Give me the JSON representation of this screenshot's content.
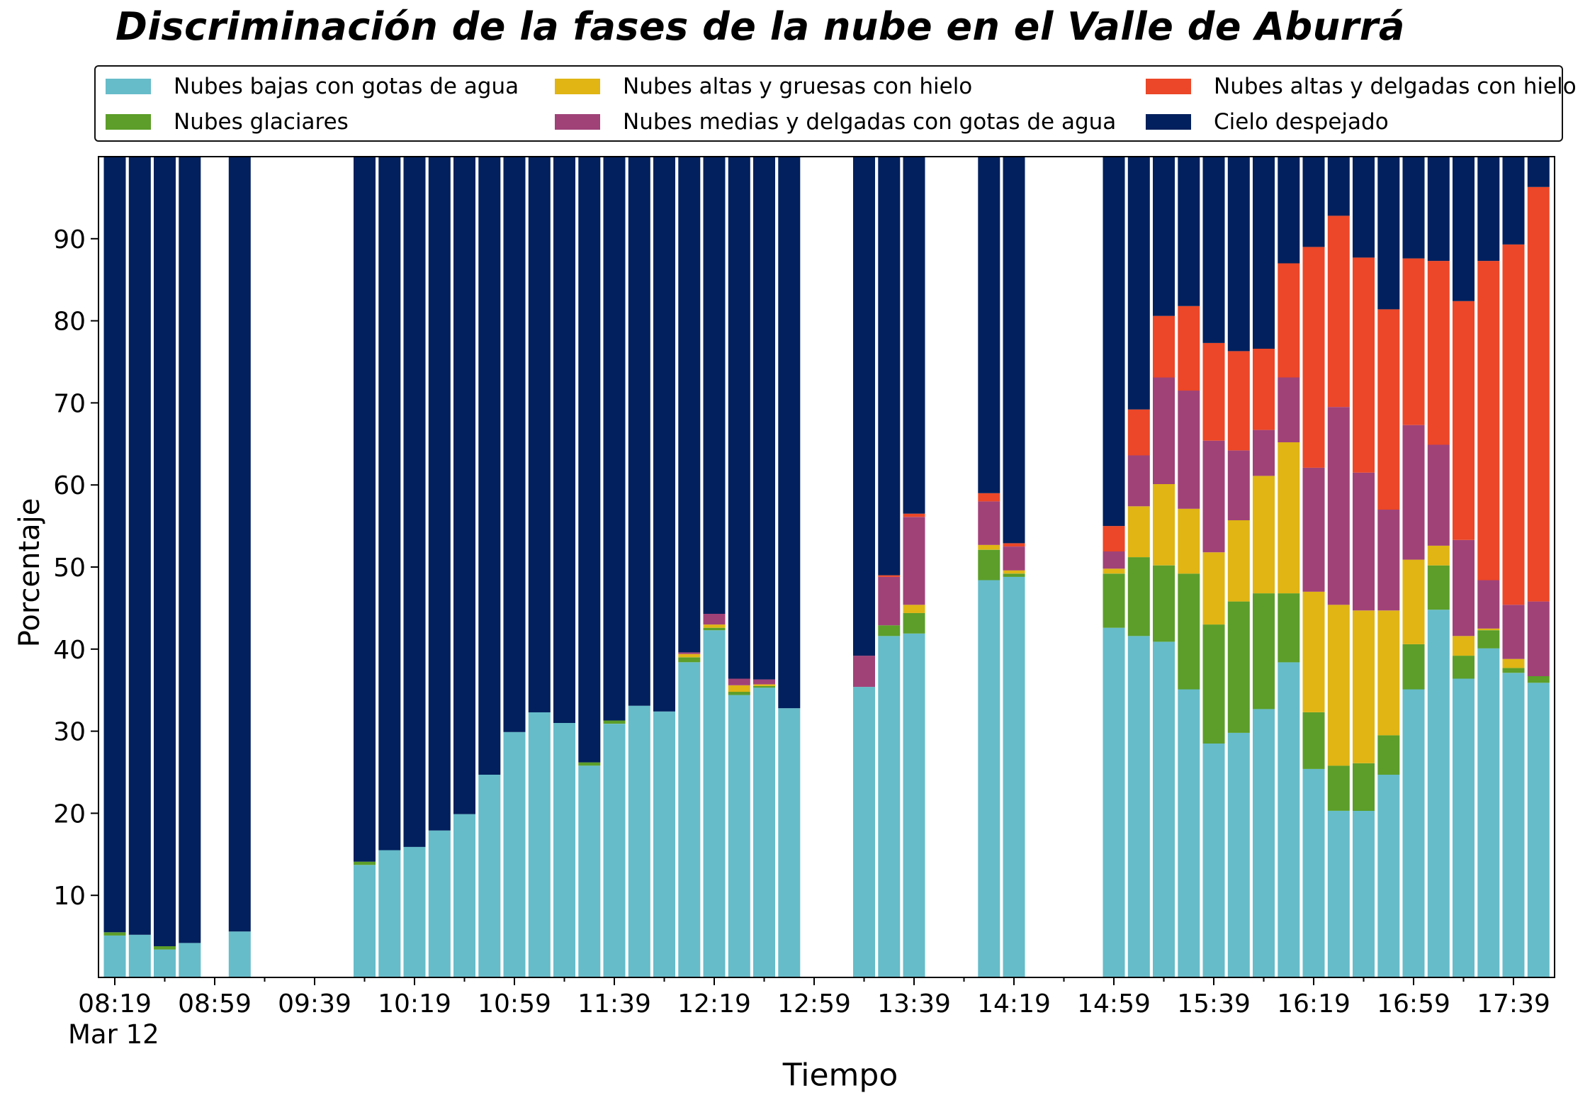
{
  "chart_data": {
    "type": "bar",
    "stacked": true,
    "title": "Discriminación de la fases de la nube en el Valle de Aburrá",
    "xlabel": "Tiempo",
    "ylabel": "Porcentaje",
    "date_label": "Mar 12",
    "ylim": [
      0,
      100
    ],
    "grid": false,
    "legend_position": "top",
    "yticks": [
      10,
      20,
      30,
      40,
      50,
      60,
      70,
      80,
      90
    ],
    "xtick_labels": [
      "08:19",
      "08:59",
      "09:39",
      "10:19",
      "10:59",
      "11:39",
      "12:19",
      "12:59",
      "13:39",
      "14:19",
      "14:59",
      "15:39",
      "16:19",
      "16:59",
      "17:39"
    ],
    "legend": [
      {
        "name": "Nubes bajas con gotas de agua",
        "color": "#66BCC9"
      },
      {
        "name": "Nubes altas y gruesas con hielo",
        "color": "#E0B514"
      },
      {
        "name": "Nubes altas y delgadas con hielo",
        "color": "#EB4728"
      },
      {
        "name": "Nubes glaciares",
        "color": "#5C9E29"
      },
      {
        "name": "Nubes medias y delgadas con gotas de agua",
        "color": "#A04278"
      },
      {
        "name": "Cielo despejado",
        "color": "#02205D"
      }
    ],
    "series_names": [
      "Nubes bajas con gotas de agua",
      "Nubes glaciares",
      "Nubes altas y gruesas con hielo",
      "Nubes medias y delgadas con gotas de agua",
      "Nubes altas y delgadas con hielo",
      "Cielo despejado"
    ],
    "bars": [
      {
        "time": "08:19",
        "values": [
          5.1,
          0.4,
          0,
          0,
          0,
          94.5
        ]
      },
      {
        "time": "08:29",
        "values": [
          5.2,
          0,
          0,
          0,
          0,
          94.8
        ]
      },
      {
        "time": "08:39",
        "values": [
          3.4,
          0.4,
          0,
          0,
          0,
          96.2
        ]
      },
      {
        "time": "08:49",
        "values": [
          4.2,
          0,
          0,
          0,
          0,
          95.8
        ]
      },
      {
        "time": "09:09",
        "values": [
          5.6,
          0,
          0,
          0,
          0,
          94.4
        ]
      },
      {
        "time": "09:59",
        "values": [
          13.7,
          0.4,
          0,
          0,
          0,
          85.9
        ]
      },
      {
        "time": "10:09",
        "values": [
          15.5,
          0,
          0,
          0,
          0,
          84.5
        ]
      },
      {
        "time": "10:19",
        "values": [
          15.9,
          0,
          0,
          0,
          0,
          84.1
        ]
      },
      {
        "time": "10:29",
        "values": [
          17.9,
          0,
          0,
          0,
          0,
          82.1
        ]
      },
      {
        "time": "10:39",
        "values": [
          19.9,
          0,
          0,
          0,
          0,
          80.1
        ]
      },
      {
        "time": "10:49",
        "values": [
          24.7,
          0,
          0,
          0,
          0,
          75.3
        ]
      },
      {
        "time": "10:59",
        "values": [
          29.9,
          0,
          0,
          0,
          0,
          70.1
        ]
      },
      {
        "time": "11:09",
        "values": [
          32.3,
          0,
          0,
          0,
          0,
          67.7
        ]
      },
      {
        "time": "11:19",
        "values": [
          31.0,
          0,
          0,
          0,
          0,
          69.0
        ]
      },
      {
        "time": "11:29",
        "values": [
          25.8,
          0.4,
          0,
          0,
          0,
          73.8
        ]
      },
      {
        "time": "11:39",
        "values": [
          30.9,
          0.4,
          0,
          0,
          0,
          68.7
        ]
      },
      {
        "time": "11:49",
        "values": [
          33.1,
          0,
          0,
          0,
          0,
          66.9
        ]
      },
      {
        "time": "11:59",
        "values": [
          32.4,
          0,
          0,
          0,
          0,
          67.6
        ]
      },
      {
        "time": "12:09",
        "values": [
          38.4,
          0.6,
          0.4,
          0.2,
          0,
          60.4
        ]
      },
      {
        "time": "12:19",
        "values": [
          42.3,
          0.3,
          0.4,
          1.3,
          0,
          55.7
        ]
      },
      {
        "time": "12:29",
        "values": [
          34.4,
          0.4,
          0.8,
          0.8,
          0,
          63.6
        ]
      },
      {
        "time": "12:39",
        "values": [
          35.3,
          0.2,
          0.2,
          0.6,
          0,
          63.7
        ]
      },
      {
        "time": "12:49",
        "values": [
          32.8,
          0,
          0,
          0,
          0,
          67.2
        ]
      },
      {
        "time": "13:19",
        "values": [
          35.4,
          0,
          0,
          3.8,
          0,
          60.8
        ]
      },
      {
        "time": "13:29",
        "values": [
          41.6,
          1.3,
          0,
          5.9,
          0.2,
          51.0
        ]
      },
      {
        "time": "13:39",
        "values": [
          41.9,
          2.5,
          1.0,
          10.7,
          0.4,
          43.5
        ]
      },
      {
        "time": "14:09",
        "values": [
          48.4,
          3.7,
          0.6,
          5.3,
          1.0,
          41.0
        ]
      },
      {
        "time": "14:19",
        "values": [
          48.8,
          0.4,
          0.4,
          2.9,
          0.4,
          47.1
        ]
      },
      {
        "time": "14:59",
        "values": [
          42.6,
          6.6,
          0.6,
          2.1,
          3.1,
          45.0
        ]
      },
      {
        "time": "15:09",
        "values": [
          41.6,
          9.6,
          6.2,
          6.2,
          5.6,
          30.8
        ]
      },
      {
        "time": "15:19",
        "values": [
          40.9,
          9.3,
          9.9,
          13.0,
          7.5,
          19.4
        ]
      },
      {
        "time": "15:29",
        "values": [
          35.1,
          14.1,
          7.9,
          14.4,
          10.3,
          18.2
        ]
      },
      {
        "time": "15:39",
        "values": [
          28.5,
          14.5,
          8.8,
          13.6,
          11.9,
          22.7
        ]
      },
      {
        "time": "15:49",
        "values": [
          29.8,
          16.0,
          9.9,
          8.5,
          12.1,
          23.7
        ]
      },
      {
        "time": "15:59",
        "values": [
          32.7,
          14.1,
          14.3,
          5.6,
          9.9,
          23.4
        ]
      },
      {
        "time": "16:09",
        "values": [
          38.4,
          8.4,
          18.4,
          7.9,
          13.9,
          13.0
        ]
      },
      {
        "time": "16:19",
        "values": [
          25.4,
          6.9,
          14.7,
          15.1,
          26.9,
          11.0
        ]
      },
      {
        "time": "16:29",
        "values": [
          20.3,
          5.5,
          19.6,
          24.1,
          23.3,
          7.2
        ]
      },
      {
        "time": "16:39",
        "values": [
          20.3,
          5.8,
          18.6,
          16.8,
          26.2,
          12.3
        ]
      },
      {
        "time": "16:49",
        "values": [
          24.7,
          4.8,
          15.2,
          12.3,
          24.4,
          18.6
        ]
      },
      {
        "time": "16:59",
        "values": [
          35.1,
          5.5,
          10.3,
          16.4,
          20.3,
          12.4
        ]
      },
      {
        "time": "17:09",
        "values": [
          44.8,
          5.4,
          2.4,
          12.3,
          22.4,
          12.7
        ]
      },
      {
        "time": "17:19",
        "values": [
          36.4,
          2.8,
          2.4,
          11.7,
          29.1,
          17.6
        ]
      },
      {
        "time": "17:29",
        "values": [
          40.1,
          2.2,
          0.2,
          5.9,
          38.9,
          12.7
        ]
      },
      {
        "time": "17:39",
        "values": [
          37.1,
          0.6,
          1.1,
          6.6,
          43.9,
          10.7
        ]
      },
      {
        "time": "17:49",
        "values": [
          35.9,
          0.8,
          0,
          9.1,
          50.5,
          3.7
        ]
      }
    ]
  }
}
